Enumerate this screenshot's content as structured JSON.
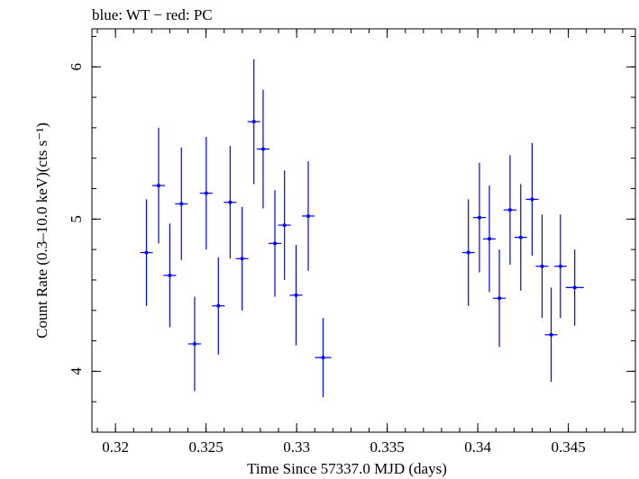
{
  "chart_data": {
    "type": "scatter",
    "title": "blue: WT − red: PC",
    "xlabel": "Time Since 57337.0 MJD (days)",
    "ylabel": "Count Rate (0.3–10.0 keV)(cts s⁻¹)",
    "xlim": [
      0.3187,
      0.3487
    ],
    "ylim": [
      3.6,
      6.25
    ],
    "xticks": [
      0.32,
      0.325,
      0.33,
      0.335,
      0.34,
      0.345
    ],
    "xtick_labels": [
      "0.32",
      "0.325",
      "0.33",
      "0.335",
      "0.34",
      "0.345"
    ],
    "yticks": [
      4,
      5,
      6
    ],
    "ytick_labels": [
      "4",
      "5",
      "6"
    ],
    "xminor_step": 0.001,
    "yminor_step": 0.2,
    "grid": false,
    "series": [
      {
        "color": "#0000ff",
        "points": [
          {
            "x": 0.32171,
            "y": 4.78,
            "xerr": 0.00035,
            "yerr": 0.35
          },
          {
            "x": 0.32238,
            "y": 5.22,
            "xerr": 0.00035,
            "yerr": 0.38
          },
          {
            "x": 0.323,
            "y": 4.63,
            "xerr": 0.00035,
            "yerr": 0.34
          },
          {
            "x": 0.32364,
            "y": 5.1,
            "xerr": 0.00035,
            "yerr": 0.37
          },
          {
            "x": 0.32437,
            "y": 4.18,
            "xerr": 0.00035,
            "yerr": 0.31
          },
          {
            "x": 0.32501,
            "y": 5.17,
            "xerr": 0.00035,
            "yerr": 0.37
          },
          {
            "x": 0.32568,
            "y": 4.43,
            "xerr": 0.00035,
            "yerr": 0.32
          },
          {
            "x": 0.32633,
            "y": 5.11,
            "xerr": 0.00035,
            "yerr": 0.37
          },
          {
            "x": 0.32699,
            "y": 4.74,
            "xerr": 0.00035,
            "yerr": 0.34
          },
          {
            "x": 0.32764,
            "y": 5.64,
            "xerr": 0.00035,
            "yerr": 0.41
          },
          {
            "x": 0.32815,
            "y": 5.46,
            "xerr": 0.00035,
            "yerr": 0.39
          },
          {
            "x": 0.3288,
            "y": 4.84,
            "xerr": 0.00035,
            "yerr": 0.35
          },
          {
            "x": 0.32933,
            "y": 4.96,
            "xerr": 0.00035,
            "yerr": 0.36
          },
          {
            "x": 0.32997,
            "y": 4.5,
            "xerr": 0.00035,
            "yerr": 0.33
          },
          {
            "x": 0.33064,
            "y": 5.02,
            "xerr": 0.00035,
            "yerr": 0.36
          },
          {
            "x": 0.33146,
            "y": 4.09,
            "xerr": 0.00045,
            "yerr": 0.26
          },
          {
            "x": 0.33948,
            "y": 4.78,
            "xerr": 0.00035,
            "yerr": 0.35
          },
          {
            "x": 0.34009,
            "y": 5.01,
            "xerr": 0.00035,
            "yerr": 0.36
          },
          {
            "x": 0.34064,
            "y": 4.87,
            "xerr": 0.00035,
            "yerr": 0.35
          },
          {
            "x": 0.34119,
            "y": 4.48,
            "xerr": 0.00035,
            "yerr": 0.32
          },
          {
            "x": 0.34178,
            "y": 5.06,
            "xerr": 0.00035,
            "yerr": 0.36
          },
          {
            "x": 0.34237,
            "y": 4.88,
            "xerr": 0.00035,
            "yerr": 0.35
          },
          {
            "x": 0.343,
            "y": 5.13,
            "xerr": 0.00035,
            "yerr": 0.37
          },
          {
            "x": 0.34355,
            "y": 4.69,
            "xerr": 0.00035,
            "yerr": 0.34
          },
          {
            "x": 0.34405,
            "y": 4.24,
            "xerr": 0.00035,
            "yerr": 0.31
          },
          {
            "x": 0.34456,
            "y": 4.69,
            "xerr": 0.00035,
            "yerr": 0.34
          },
          {
            "x": 0.34535,
            "y": 4.55,
            "xerr": 0.0005,
            "yerr": 0.25
          }
        ]
      }
    ]
  }
}
